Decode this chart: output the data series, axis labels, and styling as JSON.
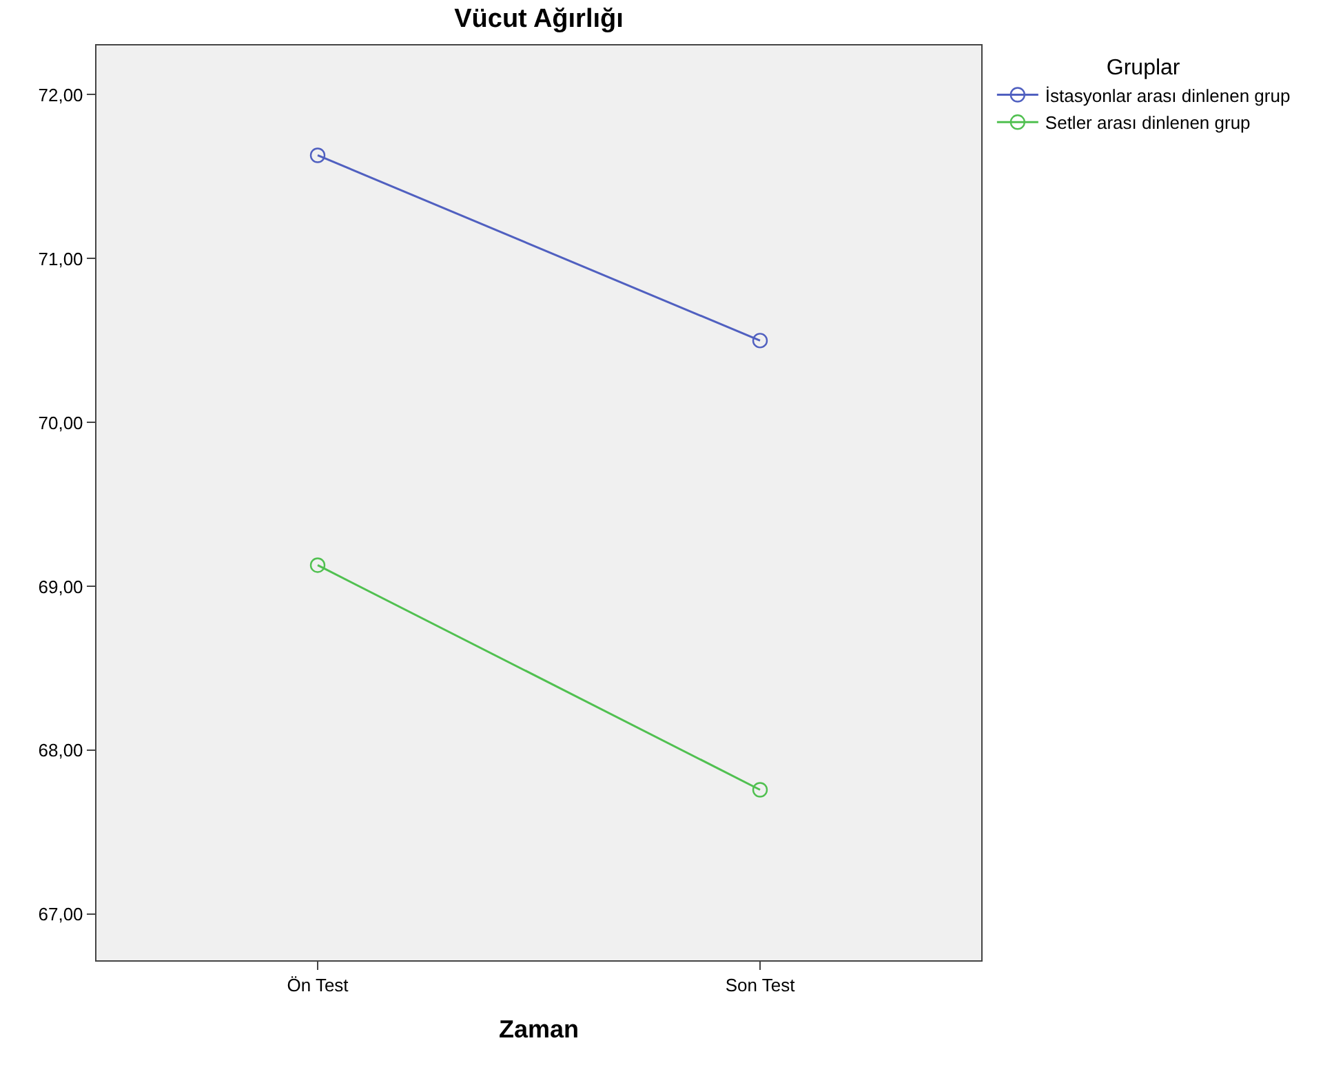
{
  "chart_data": {
    "type": "line",
    "title": "Vücut Ağırlığı",
    "xlabel": "Zaman",
    "legend_title": "Gruplar",
    "categories": [
      "Ön Test",
      "Son Test"
    ],
    "series": [
      {
        "name": "İstasyonlar arası dinlenen grup",
        "color": "#5060c0",
        "values": [
          71.63,
          70.5
        ]
      },
      {
        "name": "Setler arası dinlenen grup",
        "color": "#50c050",
        "values": [
          69.13,
          67.76
        ]
      }
    ],
    "ylim": [
      66.72,
      72.3
    ],
    "yticks": [
      {
        "value": 67,
        "label": "67,00"
      },
      {
        "value": 68,
        "label": "68,00"
      },
      {
        "value": 69,
        "label": "69,00"
      },
      {
        "value": 70,
        "label": "70,00"
      },
      {
        "value": 71,
        "label": "71,00"
      },
      {
        "value": 72,
        "label": "72,00"
      }
    ],
    "grid": false,
    "legend": "top right",
    "marker": "circle",
    "line_style": "solid"
  }
}
